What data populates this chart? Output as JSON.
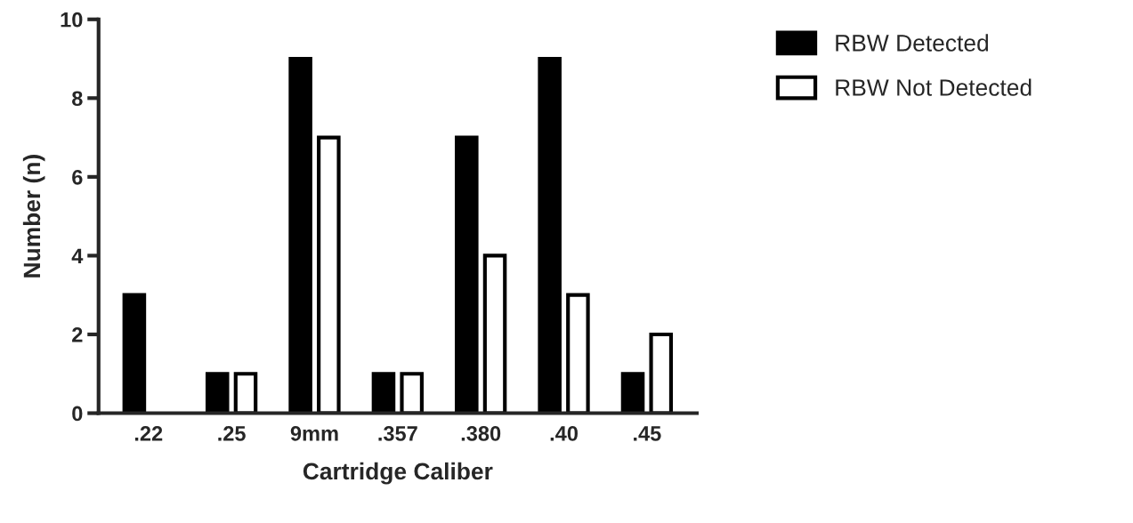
{
  "chart_data": {
    "type": "bar",
    "xlabel": "Cartridge Caliber",
    "ylabel": "Number (n)",
    "categories": [
      ".22",
      ".25",
      "9mm",
      ".357",
      ".380",
      ".40",
      ".45"
    ],
    "series": [
      {
        "name": "RBW Detected",
        "color": "#000000",
        "values": [
          3,
          1,
          9,
          1,
          7,
          9,
          1
        ]
      },
      {
        "name": "RBW Not Detected",
        "color": "#ffffff",
        "values": [
          null,
          1,
          7,
          1,
          4,
          3,
          2
        ]
      }
    ],
    "ylim": [
      0,
      10
    ],
    "yticks": [
      0,
      2,
      4,
      6,
      8,
      10
    ],
    "grid": false,
    "legend": "top right"
  }
}
